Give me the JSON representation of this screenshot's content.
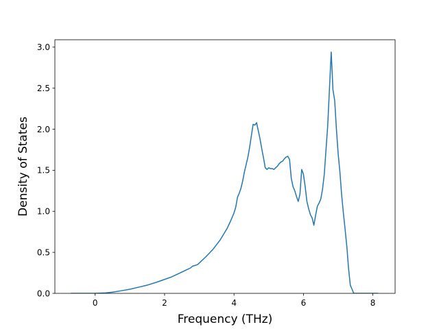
{
  "chart_data": {
    "type": "line",
    "title": "",
    "xlabel": "Frequency (THz)",
    "ylabel": "Density of States",
    "xlim": [
      -1.16,
      8.64
    ],
    "ylim": [
      0.0,
      3.09
    ],
    "x_ticks": [
      0,
      2,
      4,
      6,
      8
    ],
    "x_tick_labels": [
      "0",
      "2",
      "4",
      "6",
      "8"
    ],
    "y_ticks": [
      0.0,
      0.5,
      1.0,
      1.5,
      2.0,
      2.5,
      3.0
    ],
    "y_tick_labels": [
      "0.0",
      "0.5",
      "1.0",
      "1.5",
      "2.0",
      "2.5",
      "3.0"
    ],
    "grid": false,
    "legend": "none",
    "series": [
      {
        "color": "#1f77b4",
        "x": [
          -0.7,
          -0.4,
          0.0,
          0.3,
          0.5,
          0.8,
          1.0,
          1.3,
          1.5,
          1.8,
          2.0,
          2.2,
          2.4,
          2.6,
          2.75,
          2.8,
          2.95,
          3.0,
          3.2,
          3.4,
          3.6,
          3.7,
          3.8,
          3.9,
          4.0,
          4.05,
          4.1,
          4.15,
          4.2,
          4.25,
          4.3,
          4.35,
          4.4,
          4.45,
          4.5,
          4.55,
          4.6,
          4.65,
          4.7,
          4.75,
          4.8,
          4.85,
          4.9,
          4.95,
          5.0,
          5.05,
          5.1,
          5.15,
          5.2,
          5.25,
          5.3,
          5.35,
          5.4,
          5.45,
          5.5,
          5.55,
          5.6,
          5.65,
          5.7,
          5.75,
          5.8,
          5.85,
          5.9,
          5.95,
          6.0,
          6.05,
          6.1,
          6.15,
          6.2,
          6.25,
          6.3,
          6.35,
          6.4,
          6.45,
          6.5,
          6.55,
          6.6,
          6.65,
          6.7,
          6.75,
          6.8,
          6.85,
          6.9,
          6.95,
          7.0,
          7.05,
          7.1,
          7.15,
          7.2,
          7.25,
          7.3,
          7.35,
          7.4,
          7.45,
          7.5,
          7.8,
          8.15
        ],
        "y": [
          0.0,
          0.0,
          0.0,
          0.005,
          0.015,
          0.035,
          0.05,
          0.08,
          0.1,
          0.14,
          0.17,
          0.2,
          0.24,
          0.28,
          0.31,
          0.33,
          0.35,
          0.37,
          0.45,
          0.54,
          0.65,
          0.72,
          0.79,
          0.88,
          0.98,
          1.05,
          1.17,
          1.22,
          1.28,
          1.37,
          1.48,
          1.57,
          1.66,
          1.78,
          1.92,
          2.06,
          2.05,
          2.08,
          1.98,
          1.88,
          1.76,
          1.65,
          1.53,
          1.51,
          1.53,
          1.52,
          1.52,
          1.51,
          1.53,
          1.55,
          1.58,
          1.6,
          1.61,
          1.64,
          1.66,
          1.67,
          1.63,
          1.4,
          1.3,
          1.25,
          1.18,
          1.12,
          1.21,
          1.51,
          1.45,
          1.3,
          1.12,
          1.03,
          0.96,
          0.92,
          0.83,
          0.95,
          1.06,
          1.1,
          1.15,
          1.27,
          1.45,
          1.75,
          2.05,
          2.5,
          2.94,
          2.48,
          2.35,
          2.0,
          1.7,
          1.48,
          1.2,
          0.98,
          0.78,
          0.57,
          0.3,
          0.1,
          0.05,
          0.0,
          0.0,
          0.0,
          0.0
        ]
      }
    ]
  }
}
